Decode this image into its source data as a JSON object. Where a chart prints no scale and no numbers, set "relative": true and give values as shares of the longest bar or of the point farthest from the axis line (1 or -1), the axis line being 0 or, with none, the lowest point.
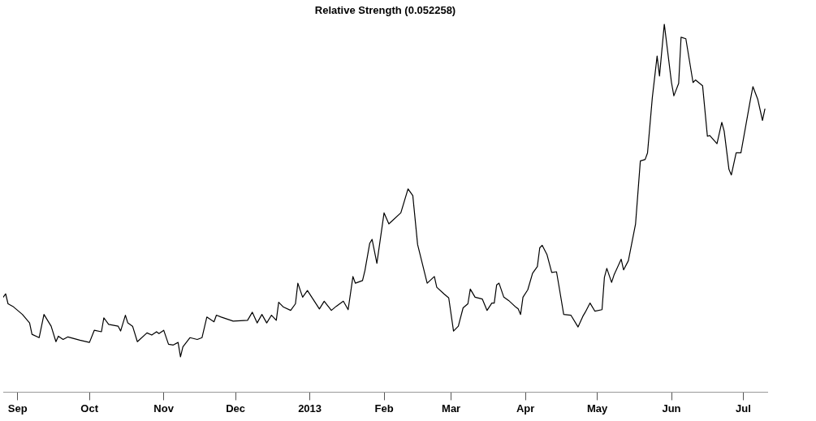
{
  "chart_data": {
    "type": "line",
    "title": "Relative Strength (0.052258)",
    "relative": true,
    "x": [
      "2012-08-26",
      "2012-08-27",
      "2012-08-28",
      "2012-08-30",
      "2012-09-03",
      "2012-09-06",
      "2012-09-07",
      "2012-09-10",
      "2012-09-12",
      "2012-09-15",
      "2012-09-17",
      "2012-09-18",
      "2012-09-20",
      "2012-09-22",
      "2012-09-27",
      "2012-10-01",
      "2012-10-03",
      "2012-10-06",
      "2012-10-07",
      "2012-10-09",
      "2012-10-13",
      "2012-10-14",
      "2012-10-16",
      "2012-10-17",
      "2012-10-19",
      "2012-10-21",
      "2012-10-25",
      "2012-10-27",
      "2012-10-29",
      "2012-10-30",
      "2012-11-01",
      "2012-11-03",
      "2012-11-05",
      "2012-11-07",
      "2012-11-08",
      "2012-11-09",
      "2012-11-12",
      "2012-11-15",
      "2012-11-17",
      "2012-11-19",
      "2012-11-22",
      "2012-11-23",
      "2012-11-25",
      "2012-11-30",
      "2012-12-06",
      "2012-12-08",
      "2012-12-10",
      "2012-12-12",
      "2012-12-14",
      "2012-12-16",
      "2012-12-18",
      "2012-12-19",
      "2012-12-21",
      "2012-12-24",
      "2012-12-26",
      "2012-12-27",
      "2012-12-29",
      "2012-12-31",
      "2013-01-05",
      "2013-01-07",
      "2013-01-10",
      "2013-01-12",
      "2013-01-15",
      "2013-01-17",
      "2013-01-19",
      "2013-01-20",
      "2013-01-23",
      "2013-01-24",
      "2013-01-26",
      "2013-01-27",
      "2013-01-29",
      "2013-02-01",
      "2013-02-03",
      "2013-02-08",
      "2013-02-11",
      "2013-02-13",
      "2013-02-15",
      "2013-02-19",
      "2013-02-22",
      "2013-02-23",
      "2013-02-26",
      "2013-02-28",
      "2013-03-02",
      "2013-03-04",
      "2013-03-06",
      "2013-03-08",
      "2013-03-09",
      "2013-03-11",
      "2013-03-14",
      "2013-03-16",
      "2013-03-18",
      "2013-03-19",
      "2013-03-20",
      "2013-03-21",
      "2013-03-23",
      "2013-03-25",
      "2013-03-28",
      "2013-03-29",
      "2013-03-30",
      "2013-03-31",
      "2013-04-02",
      "2013-04-04",
      "2013-04-06",
      "2013-04-07",
      "2013-04-08",
      "2013-04-10",
      "2013-04-12",
      "2013-04-14",
      "2013-04-15",
      "2013-04-17",
      "2013-04-20",
      "2013-04-23",
      "2013-04-25",
      "2013-04-26",
      "2013-04-28",
      "2013-04-30",
      "2013-05-03",
      "2013-05-04",
      "2013-05-05",
      "2013-05-07",
      "2013-05-08",
      "2013-05-11",
      "2013-05-12",
      "2013-05-14",
      "2013-05-17",
      "2013-05-19",
      "2013-05-21",
      "2013-05-22",
      "2013-05-24",
      "2013-05-26",
      "2013-05-27",
      "2013-05-29",
      "2013-06-01",
      "2013-06-02",
      "2013-06-04",
      "2013-06-05",
      "2013-06-07",
      "2013-06-10",
      "2013-06-11",
      "2013-06-14",
      "2013-06-16",
      "2013-06-17",
      "2013-06-20",
      "2013-06-22",
      "2013-06-23",
      "2013-06-25",
      "2013-06-26",
      "2013-06-28",
      "2013-06-30",
      "2013-07-04",
      "2013-07-05",
      "2013-07-07",
      "2013-07-09",
      "2013-07-10"
    ],
    "series": [
      {
        "color": "#000000",
        "values": [
          0.258,
          0.267,
          0.24,
          0.233,
          0.211,
          0.188,
          0.157,
          0.148,
          0.211,
          0.179,
          0.137,
          0.152,
          0.143,
          0.15,
          0.141,
          0.135,
          0.168,
          0.164,
          0.202,
          0.184,
          0.179,
          0.166,
          0.209,
          0.188,
          0.179,
          0.137,
          0.161,
          0.155,
          0.164,
          0.159,
          0.168,
          0.13,
          0.128,
          0.135,
          0.096,
          0.123,
          0.148,
          0.143,
          0.148,
          0.204,
          0.191,
          0.209,
          0.204,
          0.193,
          0.195,
          0.217,
          0.188,
          0.211,
          0.188,
          0.209,
          0.195,
          0.244,
          0.231,
          0.222,
          0.24,
          0.296,
          0.258,
          0.276,
          0.226,
          0.247,
          0.222,
          0.233,
          0.247,
          0.224,
          0.314,
          0.296,
          0.303,
          0.33,
          0.404,
          0.415,
          0.35,
          0.487,
          0.457,
          0.487,
          0.552,
          0.534,
          0.401,
          0.296,
          0.314,
          0.285,
          0.267,
          0.256,
          0.166,
          0.179,
          0.229,
          0.24,
          0.28,
          0.258,
          0.253,
          0.222,
          0.242,
          0.242,
          0.291,
          0.296,
          0.258,
          0.249,
          0.231,
          0.226,
          0.211,
          0.258,
          0.278,
          0.323,
          0.341,
          0.392,
          0.399,
          0.374,
          0.325,
          0.327,
          0.289,
          0.211,
          0.209,
          0.177,
          0.206,
          0.217,
          0.242,
          0.22,
          0.224,
          0.312,
          0.336,
          0.298,
          0.318,
          0.361,
          0.332,
          0.357,
          0.457,
          0.628,
          0.632,
          0.65,
          0.8,
          0.913,
          0.859,
          1.0,
          0.841,
          0.805,
          0.839,
          0.964,
          0.96,
          0.841,
          0.848,
          0.832,
          0.695,
          0.697,
          0.675,
          0.733,
          0.709,
          0.605,
          0.59,
          0.65,
          0.65,
          0.796,
          0.83,
          0.796,
          0.738,
          0.769
        ]
      }
    ],
    "xlim": [
      "2012-08-26",
      "2013-07-11"
    ],
    "xticks": [
      {
        "value": "2012-09-01",
        "label": "Sep"
      },
      {
        "value": "2012-10-01",
        "label": "Oct"
      },
      {
        "value": "2012-11-01",
        "label": "Nov"
      },
      {
        "value": "2012-12-01",
        "label": "Dec"
      },
      {
        "value": "2013-01-01",
        "label": "2013"
      },
      {
        "value": "2013-02-01",
        "label": "Feb"
      },
      {
        "value": "2013-03-01",
        "label": "Mar"
      },
      {
        "value": "2013-04-01",
        "label": "Apr"
      },
      {
        "value": "2013-05-01",
        "label": "May"
      },
      {
        "value": "2013-06-01",
        "label": "Jun"
      },
      {
        "value": "2013-07-01",
        "label": "Jul"
      }
    ],
    "grid": false,
    "legend": false,
    "marker": "none",
    "line_style": "solid"
  }
}
